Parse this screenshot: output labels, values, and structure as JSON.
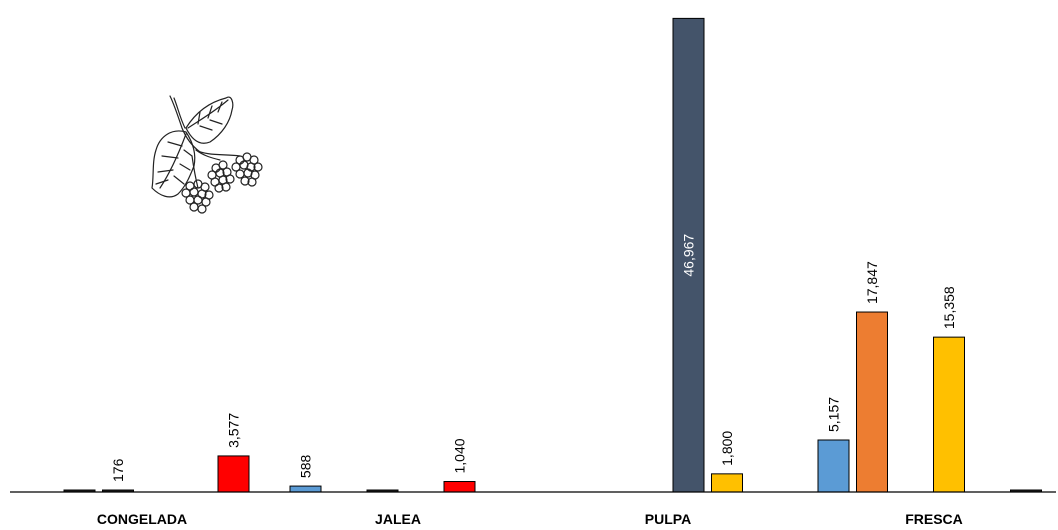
{
  "chart_data": {
    "type": "bar",
    "title": "",
    "xlabel": "",
    "ylabel": "",
    "ylim": [
      0,
      47600
    ],
    "grid": false,
    "legend": "none",
    "categories": [
      "CONGELADA",
      "JALEA",
      "PULPA",
      "FRESCA"
    ],
    "bars": [
      {
        "category": "CONGELADA",
        "slot": 0,
        "value": 0,
        "label": "",
        "color": "#1f1f1f"
      },
      {
        "category": "CONGELADA",
        "slot": 1,
        "value": 176,
        "label": "176",
        "color": "#1f1f1f"
      },
      {
        "category": "CONGELADA",
        "slot": 4,
        "value": 3577,
        "label": "3,577",
        "color": "#ff0000"
      },
      {
        "category": "JALEA",
        "slot": 0,
        "value": 588,
        "label": "588",
        "color": "#5b9bd5"
      },
      {
        "category": "JALEA",
        "slot": 2,
        "value": 0,
        "label": "",
        "color": "#1f1f1f"
      },
      {
        "category": "JALEA",
        "slot": 4,
        "value": 1040,
        "label": "1,040",
        "color": "#ff0000"
      },
      {
        "category": "PULPA",
        "slot": 2,
        "value": 46967,
        "label": "46,967",
        "color": "#44546a",
        "label_inside": true
      },
      {
        "category": "PULPA",
        "slot": 3,
        "value": 1800,
        "label": "1,800",
        "color": "#ffc000"
      },
      {
        "category": "FRESCA",
        "slot": 0,
        "value": 5157,
        "label": "5,157",
        "color": "#5b9bd5"
      },
      {
        "category": "FRESCA",
        "slot": 1,
        "value": 17847,
        "label": "17,847",
        "color": "#ed7d31"
      },
      {
        "category": "FRESCA",
        "slot": 3,
        "value": 15358,
        "label": "15,358",
        "color": "#ffc000"
      },
      {
        "category": "FRESCA",
        "slot": 5,
        "value": 0,
        "label": "",
        "color": "#1f1f1f"
      }
    ],
    "icon": "raspberry-branch-icon"
  }
}
